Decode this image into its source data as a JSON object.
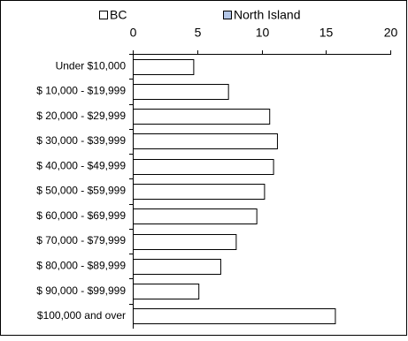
{
  "chart_data": {
    "type": "hbar",
    "categories": [
      "Under $10,000",
      "$ 10,000 - $19,999",
      "$ 20,000 - $29,999",
      "$ 30,000 - $39,999",
      "$ 40,000 - $49,999",
      "$ 50,000 - $59,999",
      "$ 60,000 - $69,999",
      "$ 70,000 - $79,999",
      "$ 80,000 - $89,999",
      "$ 90,000 - $99,999",
      "$100,000 and over"
    ],
    "series": [
      {
        "name": "BC",
        "color": "#ffffff",
        "values": [
          4.7,
          7.4,
          10.6,
          11.2,
          10.9,
          10.2,
          9.6,
          8.0,
          6.8,
          5.1,
          15.7
        ]
      },
      {
        "name": "North Island",
        "color": "#b4c7e7",
        "values": [
          null,
          null,
          null,
          null,
          null,
          null,
          null,
          null,
          null,
          null,
          null
        ]
      }
    ],
    "xlim": [
      0,
      20
    ],
    "xticks": [
      0,
      5,
      10,
      15,
      20
    ],
    "legend": "top"
  }
}
